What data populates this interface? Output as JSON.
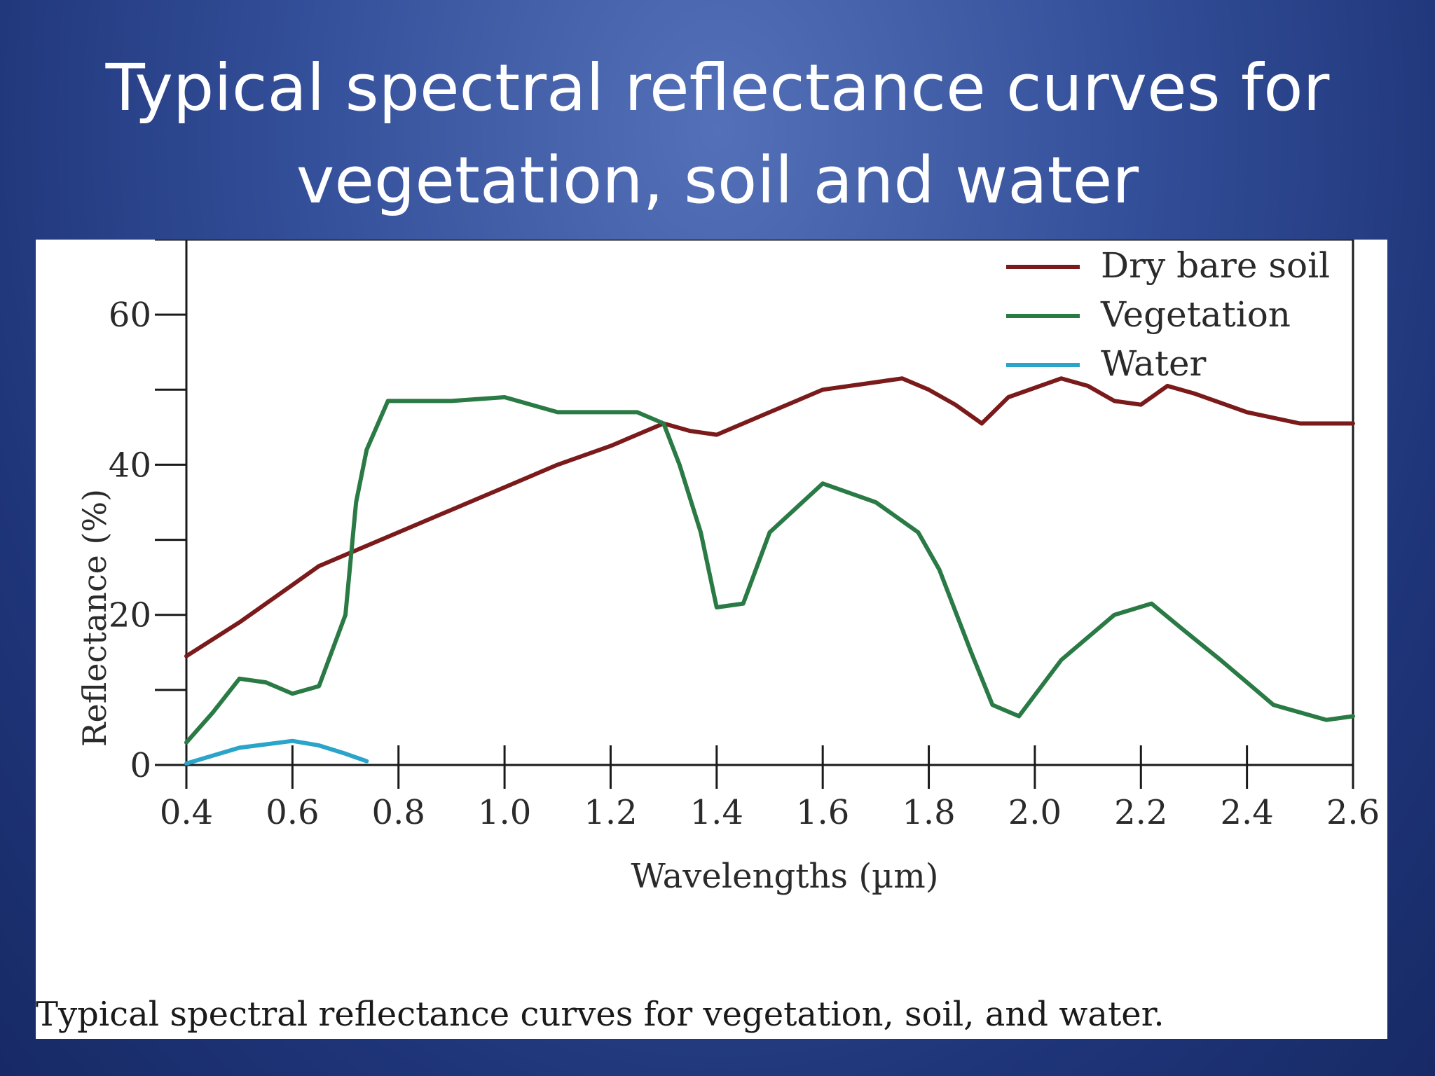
{
  "slide": {
    "title_line1": "Typical spectral reflectance curves for",
    "title_line2": "vegetation, soil and water",
    "caption": "Typical spectral reflectance curves for vegetation, soil, and water."
  },
  "chart_data": {
    "type": "line",
    "xlabel": "Wavelengths (µm)",
    "ylabel": "Reflectance (%)",
    "xlim": [
      0.4,
      2.6
    ],
    "ylim": [
      0,
      70
    ],
    "x_ticks": [
      0.4,
      0.6,
      0.8,
      1.0,
      1.2,
      1.4,
      1.6,
      1.8,
      2.0,
      2.2,
      2.4,
      2.6
    ],
    "x_tick_labels": [
      "0.4",
      "0.6",
      "0.8",
      "1.0",
      "1.2",
      "1.4",
      "1.6",
      "1.8",
      "2.0",
      "2.2",
      "2.4",
      "2.6"
    ],
    "y_ticks": [
      0,
      10,
      20,
      30,
      40,
      50,
      60,
      70
    ],
    "y_tick_labels": {
      "0": "0",
      "20": "20",
      "40": "40",
      "60": "60"
    },
    "grid": false,
    "legend_position": "top-right",
    "series": [
      {
        "name": "Dry bare soil",
        "color": "#7a1a1a",
        "points": [
          [
            0.4,
            14.5
          ],
          [
            0.5,
            19
          ],
          [
            0.6,
            24
          ],
          [
            0.65,
            26.5
          ],
          [
            0.7,
            28
          ],
          [
            0.8,
            31
          ],
          [
            0.9,
            34
          ],
          [
            1.0,
            37
          ],
          [
            1.1,
            40
          ],
          [
            1.2,
            42.5
          ],
          [
            1.3,
            45.5
          ],
          [
            1.35,
            44.5
          ],
          [
            1.4,
            44
          ],
          [
            1.5,
            47
          ],
          [
            1.6,
            50
          ],
          [
            1.7,
            51
          ],
          [
            1.75,
            51.5
          ],
          [
            1.8,
            50
          ],
          [
            1.85,
            48
          ],
          [
            1.9,
            45.5
          ],
          [
            1.95,
            49
          ],
          [
            2.05,
            51.5
          ],
          [
            2.1,
            50.5
          ],
          [
            2.15,
            48.5
          ],
          [
            2.2,
            48
          ],
          [
            2.25,
            50.5
          ],
          [
            2.3,
            49.5
          ],
          [
            2.4,
            47
          ],
          [
            2.5,
            45.5
          ],
          [
            2.6,
            45.5
          ]
        ]
      },
      {
        "name": "Vegetation",
        "color": "#2a7a45",
        "points": [
          [
            0.4,
            3
          ],
          [
            0.45,
            7
          ],
          [
            0.5,
            11.5
          ],
          [
            0.55,
            11
          ],
          [
            0.6,
            9.5
          ],
          [
            0.65,
            10.5
          ],
          [
            0.7,
            20
          ],
          [
            0.72,
            35
          ],
          [
            0.74,
            42
          ],
          [
            0.78,
            48.5
          ],
          [
            0.9,
            48.5
          ],
          [
            1.0,
            49
          ],
          [
            1.1,
            47
          ],
          [
            1.25,
            47
          ],
          [
            1.3,
            45.5
          ],
          [
            1.33,
            40
          ],
          [
            1.37,
            31
          ],
          [
            1.4,
            21
          ],
          [
            1.45,
            21.5
          ],
          [
            1.5,
            31
          ],
          [
            1.6,
            37.5
          ],
          [
            1.7,
            35
          ],
          [
            1.78,
            31
          ],
          [
            1.82,
            26
          ],
          [
            1.88,
            15
          ],
          [
            1.92,
            8
          ],
          [
            1.97,
            6.5
          ],
          [
            2.05,
            14
          ],
          [
            2.15,
            20
          ],
          [
            2.22,
            21.5
          ],
          [
            2.28,
            18
          ],
          [
            2.35,
            14
          ],
          [
            2.45,
            8
          ],
          [
            2.55,
            6
          ],
          [
            2.6,
            6.5
          ]
        ]
      },
      {
        "name": "Water",
        "color": "#2aa4c9",
        "points": [
          [
            0.4,
            0.2
          ],
          [
            0.5,
            2.3
          ],
          [
            0.6,
            3.2
          ],
          [
            0.65,
            2.6
          ],
          [
            0.7,
            1.5
          ],
          [
            0.74,
            0.5
          ]
        ]
      }
    ]
  }
}
